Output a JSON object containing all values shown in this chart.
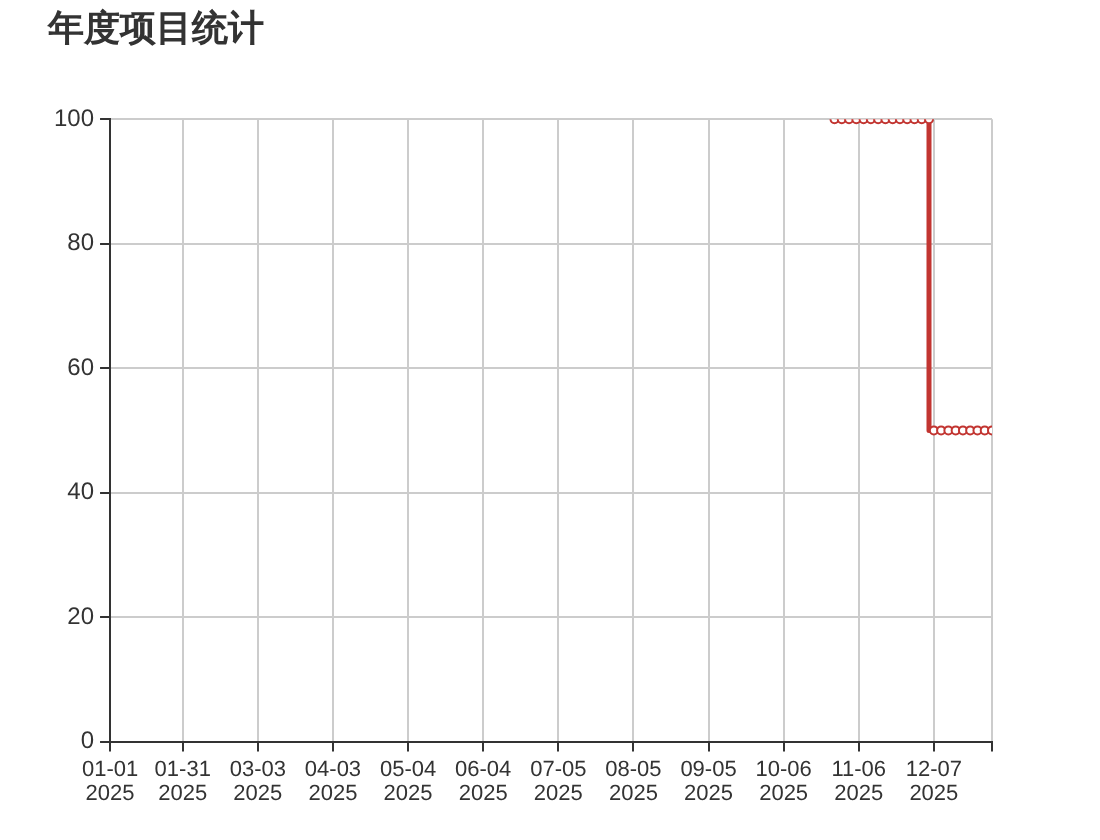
{
  "chart_data": {
    "type": "step",
    "title": "年度项目统计",
    "x": [
      "2025-10-27",
      "2025-10-30",
      "2025-11-02",
      "2025-11-05",
      "2025-11-08",
      "2025-11-11",
      "2025-11-14",
      "2025-11-17",
      "2025-11-20",
      "2025-11-23",
      "2025-11-26",
      "2025-11-29",
      "2025-12-02",
      "2025-12-05",
      "2025-12-07",
      "2025-12-10",
      "2025-12-13",
      "2025-12-16",
      "2025-12-19",
      "2025-12-22",
      "2025-12-25",
      "2025-12-28",
      "2025-12-31"
    ],
    "series": [
      {
        "color": "#c23531",
        "values": [
          100,
          100,
          100,
          100,
          100,
          100,
          100,
          100,
          100,
          100,
          100,
          100,
          100,
          100,
          50,
          50,
          50,
          50,
          50,
          50,
          50,
          50,
          50
        ]
      }
    ],
    "xlim": [
      "2025-01-01",
      "2025-12-31"
    ],
    "xticks": [
      {
        "value": "2025-01-01",
        "label": "01-01\n2025"
      },
      {
        "value": "2025-01-31",
        "label": "01-31\n2025"
      },
      {
        "value": "2025-03-03",
        "label": "03-03\n2025"
      },
      {
        "value": "2025-04-03",
        "label": "04-03\n2025"
      },
      {
        "value": "2025-05-04",
        "label": "05-04\n2025"
      },
      {
        "value": "2025-06-04",
        "label": "06-04\n2025"
      },
      {
        "value": "2025-07-05",
        "label": "07-05\n2025"
      },
      {
        "value": "2025-08-05",
        "label": "08-05\n2025"
      },
      {
        "value": "2025-09-05",
        "label": "09-05\n2025"
      },
      {
        "value": "2025-10-06",
        "label": "10-06\n2025"
      },
      {
        "value": "2025-11-06",
        "label": "11-06\n2025"
      },
      {
        "value": "2025-12-07",
        "label": "12-07\n2025"
      },
      {
        "value": "2025-12-31",
        "label": null
      }
    ],
    "ylim": [
      0,
      100
    ],
    "yticks": [
      0,
      20,
      40,
      60,
      80,
      100
    ],
    "grid": true,
    "marker": "circle",
    "line_style": "solid",
    "legend": false
  }
}
